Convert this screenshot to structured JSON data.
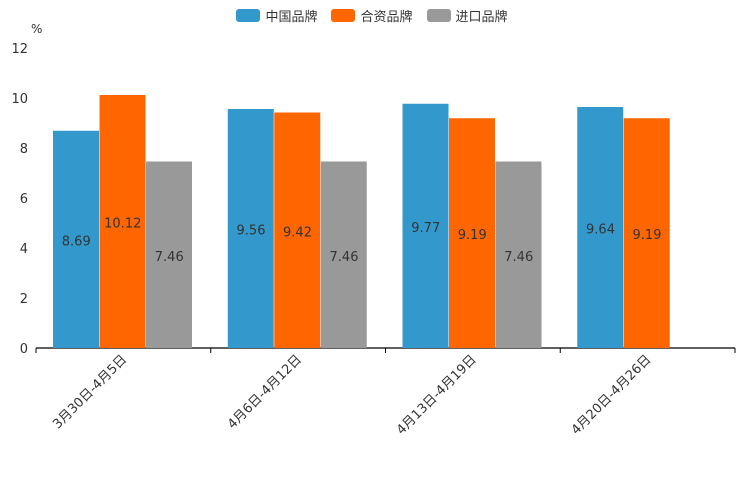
{
  "chart_data": {
    "type": "bar",
    "unit": "%",
    "categories": [
      "3月30日-4月5日",
      "4月6日-4月12日",
      "4月13日-4月19日",
      "4月20日-4月26日"
    ],
    "series": [
      {
        "name": "中国品牌",
        "color": "#3399cc",
        "values": [
          8.69,
          9.56,
          9.77,
          9.64
        ]
      },
      {
        "name": "合资品牌",
        "color": "#ff6600",
        "values": [
          10.12,
          9.42,
          9.19,
          9.19
        ]
      },
      {
        "name": "进口品牌",
        "color": "#999999",
        "values": [
          7.46,
          7.46,
          7.46,
          null
        ]
      }
    ],
    "ylim": [
      0,
      12
    ],
    "yticks": [
      0,
      2,
      4,
      6,
      8,
      10,
      12
    ],
    "legend_position": "top-center",
    "grid": false
  }
}
